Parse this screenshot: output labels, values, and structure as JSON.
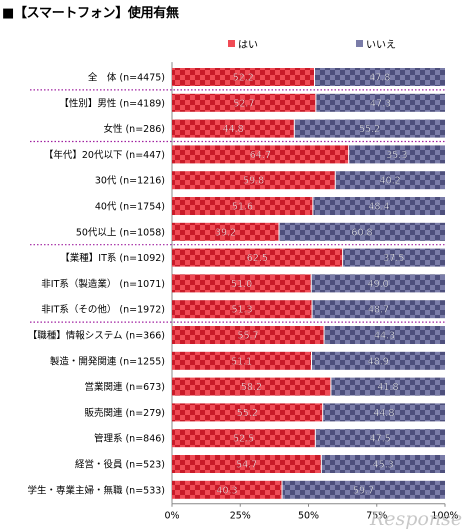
{
  "title": "■【スマートフォン】使用有無",
  "colors": {
    "yes": "#f04b55",
    "yes_dark": "#c81a28",
    "no": "#7a7ca8",
    "no_dark": "#4d4f7c",
    "separator": "#a020a0"
  },
  "watermark": "Response",
  "chart_data": {
    "type": "bar",
    "orientation": "horizontal",
    "stacked": true,
    "percent_stacked": true,
    "categories": [
      "全　体 (n=4475)",
      "【性別】男性 (n=4189)",
      "女性 (n=286)",
      "【年代】20代以下 (n=447)",
      "30代 (n=1216)",
      "40代 (n=1754)",
      "50代以上 (n=1058)",
      "【業種】IT系 (n=1092)",
      "非IT系（製造業） (n=1071)",
      "非IT系（その他） (n=1972)",
      "【職種】情報システム (n=366)",
      "製造・開発関連 (n=1255)",
      "営業関連 (n=673)",
      "販売関連 (n=279)",
      "管理系 (n=846)",
      "経営・役員 (n=523)",
      "学生・専業主婦・無職 (n=533)"
    ],
    "series": [
      {
        "name": "はい",
        "values": [
          52.2,
          52.7,
          44.8,
          64.7,
          59.8,
          51.6,
          39.2,
          62.5,
          51.0,
          51.3,
          55.7,
          51.1,
          58.2,
          55.2,
          52.5,
          54.7,
          40.3
        ]
      },
      {
        "name": "いいえ",
        "values": [
          47.8,
          47.3,
          55.2,
          35.3,
          40.2,
          48.4,
          60.8,
          37.5,
          49.0,
          48.7,
          44.3,
          48.9,
          41.8,
          44.8,
          47.5,
          45.3,
          59.7
        ]
      }
    ],
    "group_separators_after": [
      0,
      2,
      6,
      9
    ],
    "xlim": [
      0,
      100
    ],
    "x_ticks": [
      "0%",
      "25%",
      "50%",
      "75%",
      "100%"
    ],
    "legend_position": "top",
    "grid": false
  }
}
